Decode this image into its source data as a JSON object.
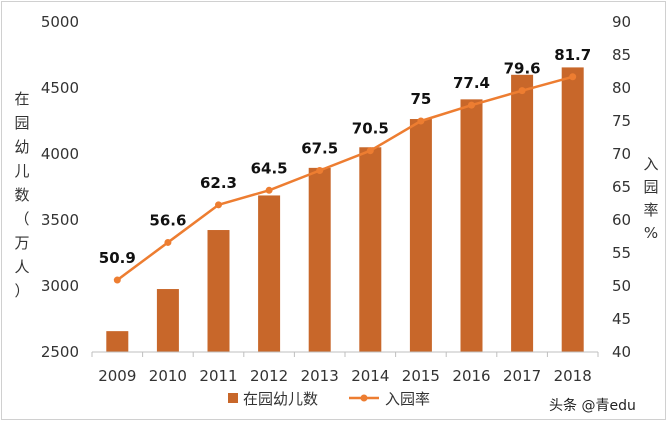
{
  "chart_data": {
    "type": "bar+line",
    "categories": [
      "2009",
      "2010",
      "2011",
      "2012",
      "2013",
      "2014",
      "2015",
      "2016",
      "2017",
      "2018"
    ],
    "series": [
      {
        "name": "在园幼儿数",
        "type": "bar",
        "axis": "left",
        "color": "#c8672a",
        "values": [
          2658,
          2977,
          3424,
          3686,
          3895,
          4051,
          4265,
          4414,
          4600,
          4656
        ]
      },
      {
        "name": "入园率",
        "type": "line",
        "axis": "right",
        "color": "#ed7d31",
        "values": [
          50.9,
          56.6,
          62.3,
          64.5,
          67.5,
          70.5,
          75,
          77.4,
          79.6,
          81.7
        ],
        "labels": [
          "50.9",
          "56.6",
          "62.3",
          "64.5",
          "67.5",
          "70.5",
          "75",
          "77.4",
          "79.6",
          "81.7"
        ]
      }
    ],
    "y_left": {
      "label_chars": [
        "在",
        "园",
        "幼",
        "儿",
        "数",
        "（",
        "万",
        "人",
        "）"
      ],
      "range": [
        2500,
        5000
      ],
      "ticks": [
        "2500",
        "3000",
        "3500",
        "4000",
        "4500",
        "5000"
      ]
    },
    "y_right": {
      "label_chars": [
        "入",
        "园",
        "率",
        "%"
      ],
      "range": [
        40,
        90
      ],
      "ticks": [
        "40",
        "45",
        "50",
        "55",
        "60",
        "65",
        "70",
        "75",
        "80",
        "85",
        "90"
      ]
    },
    "legend_position": "bottom-center",
    "grid": false
  },
  "watermark": "头条 @青edu"
}
